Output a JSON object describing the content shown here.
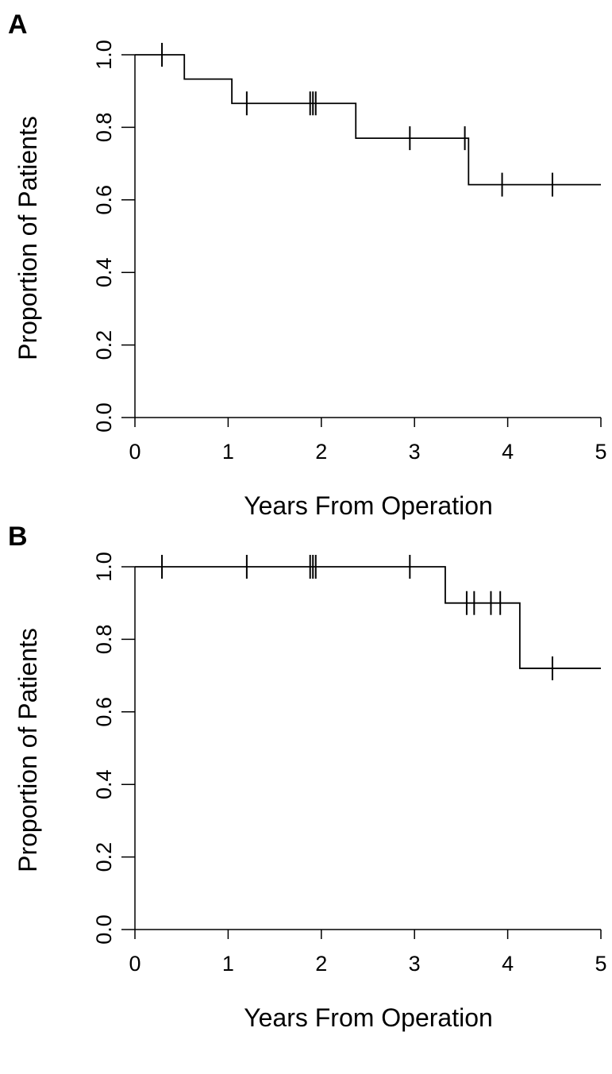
{
  "chart_data": [
    {
      "type": "line",
      "panel_label": "A",
      "xlabel": "Years From Operation",
      "ylabel": "Proportion of Patients",
      "xlim": [
        0,
        5
      ],
      "ylim": [
        0,
        1
      ],
      "x_ticks": [
        "0",
        "1",
        "2",
        "3",
        "4",
        "5"
      ],
      "y_ticks": [
        "0.0",
        "0.2",
        "0.4",
        "0.6",
        "0.8",
        "1.0"
      ],
      "grid": false,
      "series": [
        {
          "steps": [
            {
              "x": 0,
              "y": 1.0
            },
            {
              "x": 0.53,
              "y": 0.933
            },
            {
              "x": 1.04,
              "y": 0.866
            },
            {
              "x": 2.37,
              "y": 0.77
            },
            {
              "x": 3.58,
              "y": 0.642
            }
          ],
          "end_x": 5,
          "censored_x": [
            0.29,
            1.2,
            1.88,
            1.91,
            1.94,
            2.95,
            3.54,
            3.94,
            4.48
          ]
        }
      ]
    },
    {
      "type": "line",
      "panel_label": "B",
      "xlabel": "Years From Operation",
      "ylabel": "Proportion of Patients",
      "xlim": [
        0,
        5
      ],
      "ylim": [
        0,
        1
      ],
      "x_ticks": [
        "0",
        "1",
        "2",
        "3",
        "4",
        "5"
      ],
      "y_ticks": [
        "0.0",
        "0.2",
        "0.4",
        "0.6",
        "0.8",
        "1.0"
      ],
      "grid": false,
      "series": [
        {
          "steps": [
            {
              "x": 0,
              "y": 1.0
            },
            {
              "x": 3.33,
              "y": 0.9
            },
            {
              "x": 4.13,
              "y": 0.72
            }
          ],
          "end_x": 5,
          "censored_x": [
            0.29,
            1.2,
            1.88,
            1.91,
            1.94,
            2.95,
            3.56,
            3.64,
            3.82,
            3.92,
            4.48
          ]
        }
      ]
    }
  ]
}
